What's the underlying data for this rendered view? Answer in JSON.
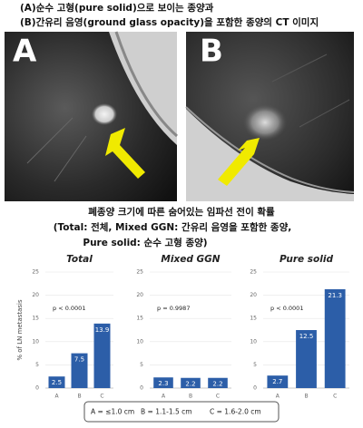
{
  "header": {
    "lines": [
      "(A)순수 고형(pure solid)으로 보이는 종양과",
      "(B)간유리 음영(ground glass opacity)을 포함한 종양의 CT 이미지"
    ]
  },
  "images": [
    {
      "label": "A"
    },
    {
      "label": "B"
    }
  ],
  "caption": {
    "lines": [
      "폐종양 크기에 따른 숨어있는 임파선 전이 확률",
      "(Total: 전체, Mixed GGN: 간유리 음영을 포함한 종양,",
      "Pure solid: 순수 고형 종양)"
    ]
  },
  "chart_data": [
    {
      "type": "bar",
      "title": "Total",
      "y_label": "% of LN metastasis",
      "annotation": "p < 0.0001",
      "categories": [
        "A",
        "B",
        "C"
      ],
      "values": [
        2.5,
        7.5,
        13.9
      ],
      "color": "#2c5ea8",
      "ylim": [
        0,
        25
      ],
      "yticks": [
        0,
        5,
        10,
        15,
        20,
        25
      ],
      "grid": true
    },
    {
      "type": "bar",
      "title": "Mixed GGN",
      "annotation": "p = 0.9987",
      "categories": [
        "A",
        "B",
        "C"
      ],
      "values": [
        2.3,
        2.2,
        2.2
      ],
      "color": "#2c5ea8",
      "ylim": [
        0,
        25
      ],
      "yticks": [
        0,
        5,
        10,
        15,
        20,
        25
      ],
      "grid": true
    },
    {
      "type": "bar",
      "title": "Pure solid",
      "annotation": "p < 0.0001",
      "categories": [
        "A",
        "B",
        "C"
      ],
      "values": [
        2.7,
        12.5,
        21.3
      ],
      "color": "#2c5ea8",
      "ylim": [
        0,
        25
      ],
      "yticks": [
        0,
        5,
        10,
        15,
        20,
        25
      ],
      "grid": true
    }
  ],
  "legend": [
    "A = ≤1.0 cm",
    "B = 1.1-1.5 cm",
    "C = 1.6-2.0 cm"
  ]
}
